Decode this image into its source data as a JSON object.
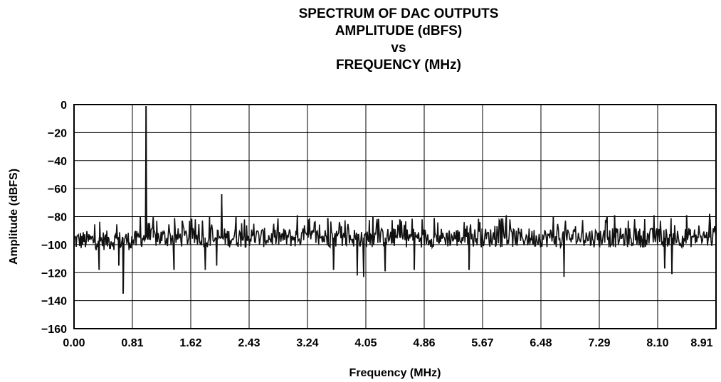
{
  "chart_data": {
    "type": "line",
    "title_lines": [
      "SPECTRUM OF DAC OUTPUTS",
      "AMPLITUDE (dBFS)",
      "vs",
      "FREQUENCY (MHz)"
    ],
    "xlabel": "Frequency (MHz)",
    "ylabel": "Amplitude (dBFS)",
    "xlim": [
      0,
      8.91
    ],
    "ylim": [
      -160,
      0
    ],
    "x_ticks": [
      "0.00",
      "0.81",
      "1.62",
      "2.43",
      "3.24",
      "4.05",
      "4.86",
      "5.67",
      "6.48",
      "7.29",
      "8.10",
      "8.91"
    ],
    "y_ticks": [
      "0",
      "-20",
      "-40",
      "-60",
      "-80",
      "-100",
      "-120",
      "-140",
      "-160"
    ],
    "y_tick_display": [
      "0",
      "−20",
      "−40",
      "−60",
      "−80",
      "−100",
      "−120",
      "−140",
      "−160"
    ],
    "grid": true,
    "series": [
      {
        "noise_floor_dBFS": -95,
        "fundamental": {
          "x": 1.0,
          "y": -1
        },
        "spurs": [
          {
            "x": 0.68,
            "y": -135
          },
          {
            "x": 0.35,
            "y": -118
          },
          {
            "x": 0.62,
            "y": -115
          },
          {
            "x": 1.1,
            "y": -80
          },
          {
            "x": 0.92,
            "y": -80
          },
          {
            "x": 1.5,
            "y": -83
          },
          {
            "x": 1.39,
            "y": -118
          },
          {
            "x": 2.05,
            "y": -64
          },
          {
            "x": 1.88,
            "y": -80
          },
          {
            "x": 1.98,
            "y": -115
          },
          {
            "x": 2.25,
            "y": -80
          },
          {
            "x": 1.82,
            "y": -118
          },
          {
            "x": 3.25,
            "y": -82
          },
          {
            "x": 3.1,
            "y": -79
          },
          {
            "x": 3.52,
            "y": -81
          },
          {
            "x": 3.6,
            "y": -118
          },
          {
            "x": 4.15,
            "y": -80
          },
          {
            "x": 3.93,
            "y": -122
          },
          {
            "x": 4.02,
            "y": -123
          },
          {
            "x": 4.32,
            "y": -119
          },
          {
            "x": 4.52,
            "y": -82
          },
          {
            "x": 4.72,
            "y": -118
          },
          {
            "x": 5.0,
            "y": -81
          },
          {
            "x": 5.48,
            "y": -118
          },
          {
            "x": 6.0,
            "y": -79
          },
          {
            "x": 6.65,
            "y": -80
          },
          {
            "x": 6.8,
            "y": -123
          },
          {
            "x": 7.4,
            "y": -80
          },
          {
            "x": 7.5,
            "y": -79
          },
          {
            "x": 8.05,
            "y": -79
          },
          {
            "x": 8.2,
            "y": -117
          },
          {
            "x": 8.3,
            "y": -121
          },
          {
            "x": 8.5,
            "y": -79
          },
          {
            "x": 8.82,
            "y": -78
          }
        ]
      }
    ]
  }
}
